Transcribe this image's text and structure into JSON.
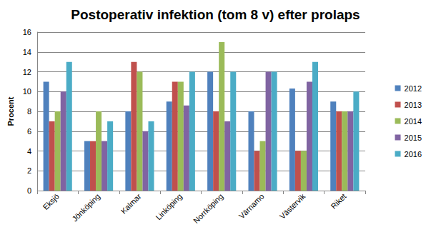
{
  "chart_data": {
    "type": "bar",
    "title": "Postoperativ infektion (tom 8 v) efter prolaps",
    "y_label": "Procent",
    "categories": [
      "Eksjö",
      "Jönköping",
      "Kalmar",
      "Linköping",
      "Norrköping",
      "Värnamo",
      "Västervik",
      "Riket"
    ],
    "series": [
      {
        "name": "2012",
        "color": "#4f81bd",
        "values": [
          11,
          5,
          8,
          9,
          12,
          8,
          10.3,
          9
        ]
      },
      {
        "name": "2013",
        "color": "#c0504d",
        "values": [
          7,
          5,
          13,
          11,
          8,
          4,
          4,
          8
        ]
      },
      {
        "name": "2014",
        "color": "#9bbb59",
        "values": [
          8,
          8,
          12,
          11,
          15,
          5,
          4,
          8
        ]
      },
      {
        "name": "2015",
        "color": "#8064a2",
        "values": [
          10,
          5,
          6,
          8.6,
          7,
          12,
          11,
          8
        ]
      },
      {
        "name": "2016",
        "color": "#4bacc6",
        "values": [
          13,
          7,
          7,
          12,
          12,
          12,
          13,
          10
        ]
      }
    ],
    "ylim": [
      0,
      16
    ],
    "yticks": [
      0,
      2,
      4,
      6,
      8,
      10,
      12,
      14,
      16
    ],
    "grid": true,
    "legend": "right"
  }
}
